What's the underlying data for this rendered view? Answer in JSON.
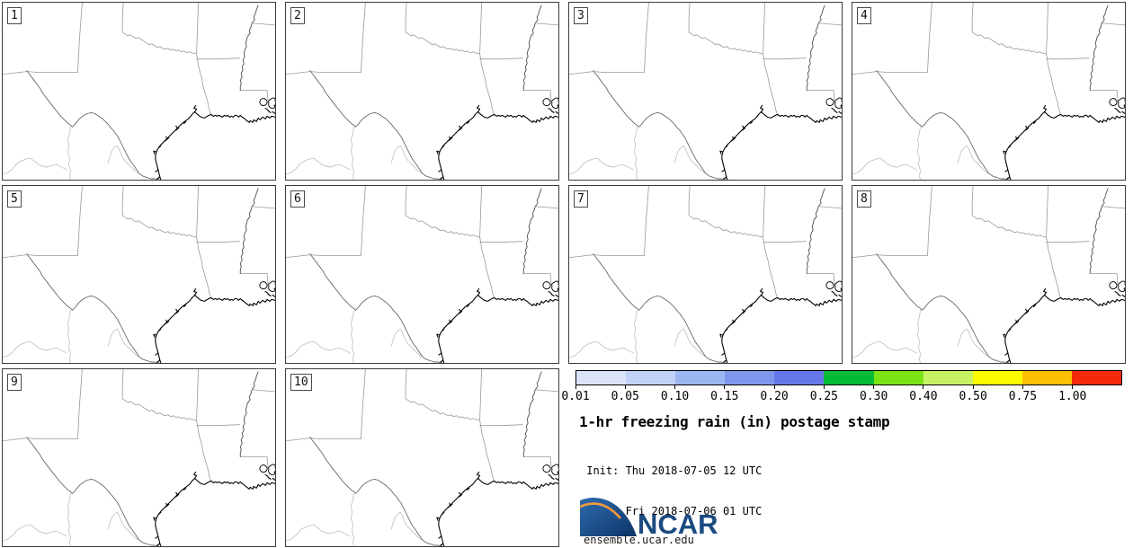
{
  "figure": {
    "title": "1-hr freezing rain (in) postage stamp",
    "init_label": " Init: Thu 2018-07-05 12 UTC",
    "valid_label": "Valid: Fri 2018-07-06 01 UTC"
  },
  "panels": [
    {
      "label": "1"
    },
    {
      "label": "2"
    },
    {
      "label": "3"
    },
    {
      "label": "4"
    },
    {
      "label": "5"
    },
    {
      "label": "6"
    },
    {
      "label": "7"
    },
    {
      "label": "8"
    },
    {
      "label": "9"
    },
    {
      "label": "10"
    }
  ],
  "colorbar": {
    "tick_labels": [
      "0.01",
      "0.05",
      "0.10",
      "0.15",
      "0.20",
      "0.25",
      "0.30",
      "0.40",
      "0.50",
      "0.75",
      "1.00"
    ],
    "segment_colors": [
      "#dbe3f8",
      "#c2d2f6",
      "#9cb7f2",
      "#7e98ee",
      "#6678e8",
      "#04bb38",
      "#7ce314",
      "#c7f264",
      "#fcfa00",
      "#fcbf04",
      "#f42a0c"
    ]
  },
  "branding": {
    "logo_text": "NCAR",
    "site_url": "ensemble.ucar.edu",
    "logo_blue_dark": "#0c3468",
    "logo_blue_light": "#2f6cb0",
    "logo_orange": "#f49c3c"
  }
}
